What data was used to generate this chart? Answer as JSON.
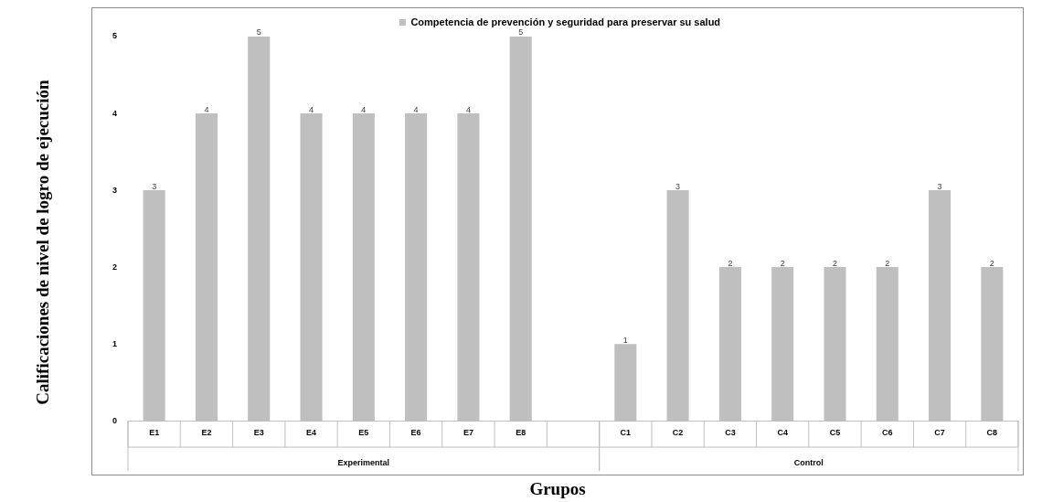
{
  "chart_data": {
    "type": "bar",
    "xlabel": "Grupos",
    "ylabel": "Calificaciones de nivel de logro de ejecución",
    "categories": [
      "E1",
      "E2",
      "E3",
      "E4",
      "E5",
      "E6",
      "E7",
      "E8",
      null,
      "C1",
      "C2",
      "C3",
      "C4",
      "C5",
      "C6",
      "C7",
      "C8"
    ],
    "series": [
      {
        "name": "Competencia de prevención y seguridad para preservar su salud",
        "color": "#bfbfbf",
        "values": [
          3,
          4,
          5,
          4,
          4,
          4,
          4,
          5,
          null,
          1,
          3,
          2,
          2,
          2,
          2,
          3,
          2
        ]
      }
    ],
    "ylim": [
      0,
      5
    ],
    "yticks": [
      0,
      1,
      2,
      3,
      4,
      5
    ],
    "grid": false,
    "legend": "top",
    "data_labels": true,
    "annotations": [
      "Experimental",
      "Control"
    ]
  }
}
